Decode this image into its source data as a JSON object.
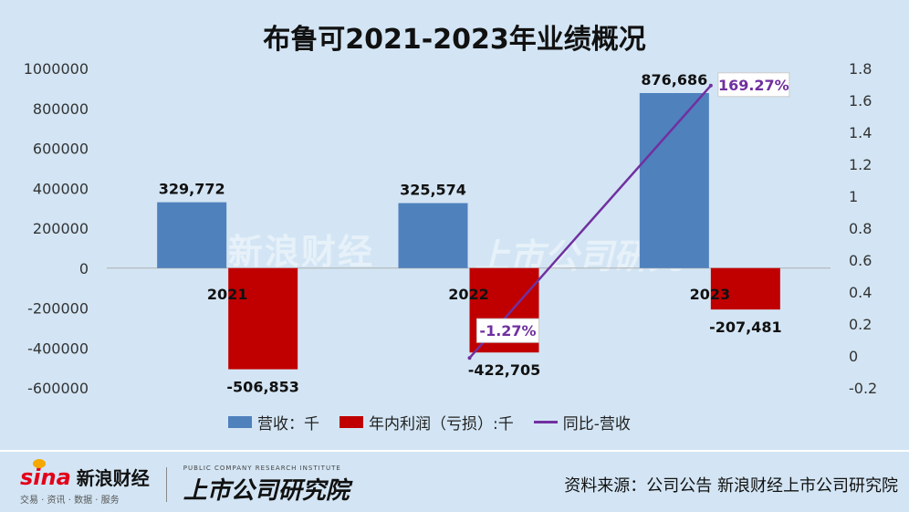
{
  "title": "布鲁可2021-2023年业绩概况",
  "watermark": {
    "left": "新浪财经",
    "right": "上市公司研究"
  },
  "footer": {
    "sina_name": "新浪财经",
    "sina_mark": "sina",
    "sina_sub": "交易 · 资讯 · 数据 · 服务",
    "institute_name": "上市公司研究院",
    "institute_sub": "PUBLIC COMPANY RESEARCH INSTITUTE",
    "source": "资料来源：公司公告 新浪财经上市公司研究院"
  },
  "chart_data": {
    "type": "bar",
    "categories": [
      "2021",
      "2022",
      "2023"
    ],
    "series": [
      {
        "name": "营收：千",
        "type": "bar",
        "color": "#4f81bd",
        "values": [
          329772,
          325574,
          876686
        ],
        "labels": [
          "329,772",
          "325,574",
          "876,686"
        ]
      },
      {
        "name": "年内利润（亏损）:千",
        "type": "bar",
        "color": "#c00000",
        "values": [
          -506853,
          -422705,
          -207481
        ],
        "labels": [
          "-506,853",
          "-422,705",
          "-207,481"
        ]
      },
      {
        "name": "同比-营收",
        "type": "line",
        "axis": "right",
        "color": "#7030a0",
        "values": [
          null,
          -0.0127,
          1.6927
        ],
        "labels": [
          "",
          "-1.27%",
          "169.27%"
        ]
      }
    ],
    "left_axis": {
      "min": -600000,
      "max": 1000000,
      "ticks": [
        "1000000",
        "800000",
        "600000",
        "400000",
        "200000",
        "0",
        "-200000",
        "-400000",
        "-600000"
      ]
    },
    "right_axis": {
      "min": -0.2,
      "max": 1.8,
      "ticks": [
        "1.8",
        "1.6",
        "1.4",
        "1.2",
        "1",
        "0.8",
        "0.6",
        "0.4",
        "0.2",
        "0",
        "-0.2"
      ]
    },
    "grid": false,
    "legend": "bottom"
  }
}
